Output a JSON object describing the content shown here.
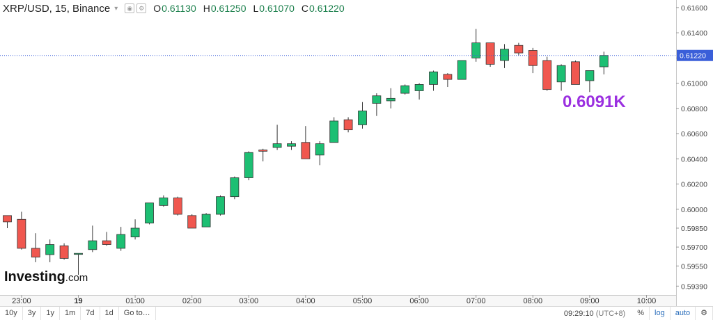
{
  "header": {
    "title": "XRP/USD, 15, Binance",
    "caret": "▾",
    "ohlc": [
      {
        "label": "O",
        "value": "0.61130"
      },
      {
        "label": "H",
        "value": "0.61250"
      },
      {
        "label": "L",
        "value": "0.61070"
      },
      {
        "label": "C",
        "value": "0.61220"
      }
    ]
  },
  "annotation": {
    "text": "0.6091K",
    "color": "#9b30e0"
  },
  "watermark": {
    "main": "Investing",
    "suffix": ".com"
  },
  "colors": {
    "up": "#1dbf73",
    "down": "#f0574f",
    "wick": "#333333",
    "price_line": "#3a5fd9",
    "price_badge": "#3a5fd9"
  },
  "chart_data": {
    "type": "candlestick",
    "ylim": [
      0.5932,
      0.6166
    ],
    "y_ticks": [
      0.616,
      0.614,
      0.612,
      0.61,
      0.608,
      0.606,
      0.604,
      0.602,
      0.6,
      0.5985,
      0.597,
      0.5955,
      0.5939
    ],
    "y_tick_labels": [
      "0.61600",
      "0.61400",
      "0.61220",
      "0.61000",
      "0.60800",
      "0.60600",
      "0.60400",
      "0.60200",
      "0.60000",
      "0.59850",
      "0.59700",
      "0.59550",
      "0.59390"
    ],
    "current_price": 0.6122,
    "current_price_label": "0.61220",
    "x_labels": [
      {
        "label": "23:00",
        "index": 1,
        "bold": false
      },
      {
        "label": "19",
        "index": 5,
        "bold": true
      },
      {
        "label": "01:00",
        "index": 9,
        "bold": false
      },
      {
        "label": "02:00",
        "index": 13,
        "bold": false
      },
      {
        "label": "03:00",
        "index": 17,
        "bold": false
      },
      {
        "label": "04:00",
        "index": 21,
        "bold": false
      },
      {
        "label": "05:00",
        "index": 25,
        "bold": false
      },
      {
        "label": "06:00",
        "index": 29,
        "bold": false
      },
      {
        "label": "07:00",
        "index": 33,
        "bold": false
      },
      {
        "label": "08:00",
        "index": 37,
        "bold": false
      },
      {
        "label": "09:00",
        "index": 41,
        "bold": false
      },
      {
        "label": "10:00",
        "index": 45,
        "bold": false
      }
    ],
    "candles": [
      {
        "o": 0.5995,
        "h": 0.5995,
        "l": 0.5985,
        "c": 0.599
      },
      {
        "o": 0.5992,
        "h": 0.5998,
        "l": 0.5968,
        "c": 0.5969
      },
      {
        "o": 0.5969,
        "h": 0.5981,
        "l": 0.5958,
        "c": 0.5962
      },
      {
        "o": 0.5964,
        "h": 0.5976,
        "l": 0.5958,
        "c": 0.5972
      },
      {
        "o": 0.5971,
        "h": 0.5973,
        "l": 0.596,
        "c": 0.5961
      },
      {
        "o": 0.5965,
        "h": 0.5965,
        "l": 0.5948,
        "c": 0.5965
      },
      {
        "o": 0.5968,
        "h": 0.5987,
        "l": 0.5966,
        "c": 0.5975
      },
      {
        "o": 0.5975,
        "h": 0.5982,
        "l": 0.5971,
        "c": 0.5972
      },
      {
        "o": 0.5969,
        "h": 0.5986,
        "l": 0.5967,
        "c": 0.598
      },
      {
        "o": 0.5978,
        "h": 0.5992,
        "l": 0.5976,
        "c": 0.5985
      },
      {
        "o": 0.5989,
        "h": 0.6005,
        "l": 0.5988,
        "c": 0.6005
      },
      {
        "o": 0.6003,
        "h": 0.6011,
        "l": 0.6002,
        "c": 0.6009
      },
      {
        "o": 0.6009,
        "h": 0.601,
        "l": 0.5995,
        "c": 0.5996
      },
      {
        "o": 0.5995,
        "h": 0.5996,
        "l": 0.5985,
        "c": 0.5985
      },
      {
        "o": 0.5986,
        "h": 0.5997,
        "l": 0.5986,
        "c": 0.5996
      },
      {
        "o": 0.5996,
        "h": 0.6011,
        "l": 0.5995,
        "c": 0.601
      },
      {
        "o": 0.601,
        "h": 0.6026,
        "l": 0.6008,
        "c": 0.6025
      },
      {
        "o": 0.6025,
        "h": 0.6046,
        "l": 0.6023,
        "c": 0.6045
      },
      {
        "o": 0.6047,
        "h": 0.6048,
        "l": 0.6038,
        "c": 0.6046
      },
      {
        "o": 0.6049,
        "h": 0.6067,
        "l": 0.6047,
        "c": 0.6052
      },
      {
        "o": 0.605,
        "h": 0.6054,
        "l": 0.6047,
        "c": 0.6052
      },
      {
        "o": 0.6053,
        "h": 0.6066,
        "l": 0.604,
        "c": 0.604
      },
      {
        "o": 0.6043,
        "h": 0.6054,
        "l": 0.6035,
        "c": 0.6052
      },
      {
        "o": 0.6053,
        "h": 0.6073,
        "l": 0.6053,
        "c": 0.607
      },
      {
        "o": 0.6071,
        "h": 0.6073,
        "l": 0.6061,
        "c": 0.6063
      },
      {
        "o": 0.6067,
        "h": 0.6085,
        "l": 0.6064,
        "c": 0.6078
      },
      {
        "o": 0.6084,
        "h": 0.6092,
        "l": 0.6074,
        "c": 0.609
      },
      {
        "o": 0.6086,
        "h": 0.6096,
        "l": 0.608,
        "c": 0.6088
      },
      {
        "o": 0.6092,
        "h": 0.6099,
        "l": 0.6091,
        "c": 0.6098
      },
      {
        "o": 0.6094,
        "h": 0.61,
        "l": 0.6087,
        "c": 0.6099
      },
      {
        "o": 0.6099,
        "h": 0.611,
        "l": 0.6094,
        "c": 0.6109
      },
      {
        "o": 0.6107,
        "h": 0.6108,
        "l": 0.6097,
        "c": 0.6103
      },
      {
        "o": 0.6103,
        "h": 0.6118,
        "l": 0.6103,
        "c": 0.6118
      },
      {
        "o": 0.612,
        "h": 0.6143,
        "l": 0.6117,
        "c": 0.6132
      },
      {
        "o": 0.6132,
        "h": 0.6132,
        "l": 0.6113,
        "c": 0.6115
      },
      {
        "o": 0.6118,
        "h": 0.6131,
        "l": 0.6112,
        "c": 0.6127
      },
      {
        "o": 0.613,
        "h": 0.6132,
        "l": 0.6122,
        "c": 0.6124
      },
      {
        "o": 0.6126,
        "h": 0.6128,
        "l": 0.6108,
        "c": 0.6114
      },
      {
        "o": 0.6118,
        "h": 0.6121,
        "l": 0.6094,
        "c": 0.6095
      },
      {
        "o": 0.6101,
        "h": 0.6115,
        "l": 0.6094,
        "c": 0.6114
      },
      {
        "o": 0.6117,
        "h": 0.6118,
        "l": 0.6099,
        "c": 0.6099
      },
      {
        "o": 0.6102,
        "h": 0.611,
        "l": 0.6093,
        "c": 0.611
      },
      {
        "o": 0.6113,
        "h": 0.6125,
        "l": 0.6107,
        "c": 0.6122
      }
    ]
  },
  "bottom_bar": {
    "ranges": [
      "10y",
      "3y",
      "1y",
      "1m",
      "7d",
      "1d",
      "Go to…"
    ],
    "clock": "09:29:10",
    "timezone": "(UTC+8)",
    "options": [
      "%",
      "log",
      "auto"
    ],
    "settings_icon": "gear-icon"
  }
}
